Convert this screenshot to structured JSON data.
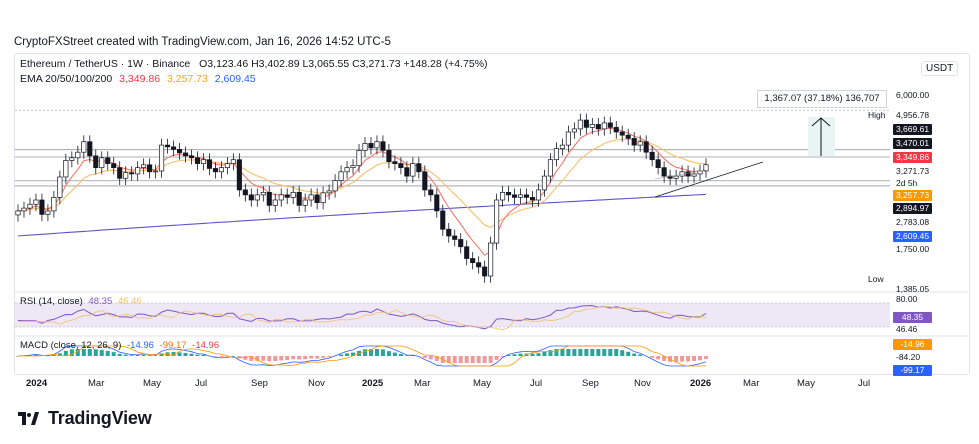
{
  "credit": "CryptoFXStreet created with TradingView.com, Jan 16, 2026 14:52 UTC-5",
  "header": {
    "symbol_line": "Ethereum / TetherUS · 1W · Binance",
    "ohlc": "O3,123.46 H3,402.89 L3,065.55 C3,271.73 +148.28 (+4.75%)",
    "ema_label": "EMA 20/50/100/200",
    "ema_values": [
      "3,349.86",
      "3,257.73",
      "2,609.45"
    ],
    "currency": "USDT"
  },
  "colors": {
    "up": "#26a69a",
    "down": "#131722",
    "ema20": "#f4796b",
    "ema50": "#f5c06a",
    "ema200": "#5b55c9",
    "rsi": "#7e57c2",
    "rsi_ma": "#f5c06a",
    "red_label": "#f23645",
    "blue_label": "#2962ff",
    "orange_label": "#ff9800"
  },
  "measure_label": "1,367.07 (37.18%) 136,707",
  "price_axis": {
    "labels": [
      {
        "text": "6,000.00",
        "style": "plain"
      },
      {
        "text": "High",
        "style": "plain-left"
      },
      {
        "text": "4,956.78",
        "style": "plain"
      },
      {
        "text": "3,669.61",
        "style": "dark"
      },
      {
        "text": "3,470.01",
        "style": "dark"
      },
      {
        "text": "3,349.86",
        "style": "red"
      },
      {
        "text": "3,271.73",
        "style": "plain"
      },
      {
        "text": "2d 5h",
        "style": "plain"
      },
      {
        "text": "3,257.73",
        "style": "orange"
      },
      {
        "text": "2,894.97",
        "style": "dark"
      },
      {
        "text": "2,783.08",
        "style": "plain"
      },
      {
        "text": "2,609.45",
        "style": "blue"
      },
      {
        "text": "1,750.00",
        "style": "plain"
      },
      {
        "text": "Low",
        "style": "plain-left"
      },
      {
        "text": "1,385.05",
        "style": "plain"
      }
    ]
  },
  "rsi": {
    "label": "RSI (14, close)",
    "value": "48.35",
    "ma_value": "46.46",
    "axis_top": "80.00"
  },
  "macd": {
    "label": "MACD (close, 12, 26, 9)",
    "values": [
      "-14.96",
      "-99.17",
      "-14.96"
    ],
    "axis": [
      "-14.96",
      "-84.20",
      "-99.17"
    ]
  },
  "x_axis": [
    "2024",
    "Mar",
    "May",
    "Jul",
    "Sep",
    "Nov",
    "2025",
    "Mar",
    "May",
    "Jul",
    "Sep",
    "Nov",
    "2026",
    "Mar",
    "May",
    "Jul"
  ],
  "brand": "TradingView",
  "chart_data": {
    "type": "candlestick",
    "title": "Ethereum / TetherUS · 1W · Binance",
    "interval": "1W",
    "x_range": [
      "2024-01",
      "2026-01"
    ],
    "y_range": [
      1385.05,
      6000.0
    ],
    "last": {
      "open": 3123.46,
      "high": 3402.89,
      "low": 3065.55,
      "close": 3271.73,
      "change": 148.28,
      "change_pct": 4.75
    },
    "high": 4956.78,
    "low": 1385.05,
    "ema": {
      "ema20": 3349.86,
      "ema50": 3257.73,
      "ema200": 2609.45
    },
    "horizontal_levels": [
      3669.61,
      3470.01,
      2894.97,
      2783.08
    ],
    "measurement": {
      "change": 1367.07,
      "pct": 37.18,
      "ticks": 136707
    },
    "closes": [
      2300,
      2350,
      2420,
      2500,
      2240,
      2300,
      2550,
      2980,
      3380,
      3450,
      3600,
      3900,
      3500,
      3200,
      3450,
      3300,
      3200,
      2950,
      3080,
      3050,
      3200,
      3270,
      3100,
      3120,
      3800,
      3750,
      3680,
      3580,
      3500,
      3450,
      3300,
      3400,
      3180,
      3100,
      3200,
      3300,
      3400,
      2700,
      2600,
      2500,
      2600,
      2650,
      2400,
      2500,
      2600,
      2550,
      2650,
      2400,
      2500,
      2600,
      2450,
      2640,
      2680,
      2900,
      3100,
      3200,
      3250,
      3650,
      3850,
      3720,
      3900,
      3650,
      3350,
      3300,
      3200,
      3000,
      3300,
      3100,
      2700,
      2600,
      2300,
      2000,
      1900,
      1850,
      1750,
      1600,
      1550,
      1500,
      1400,
      1800,
      2500,
      2650,
      2600,
      2550,
      2600,
      2550,
      2500,
      2700,
      3000,
      3400,
      3700,
      3800,
      4200,
      4300,
      4600,
      4350,
      4450,
      4300,
      4500,
      4350,
      4200,
      4100,
      4000,
      3800,
      3900,
      3600,
      3400,
      3200,
      3000,
      2950,
      3000,
      3100,
      3000,
      3050,
      3120,
      3271.73
    ],
    "rsi": {
      "value": 48.35,
      "ma": 46.46
    },
    "macd": {
      "macd": -14.96,
      "signal": -99.17,
      "hist": -84.2
    }
  }
}
